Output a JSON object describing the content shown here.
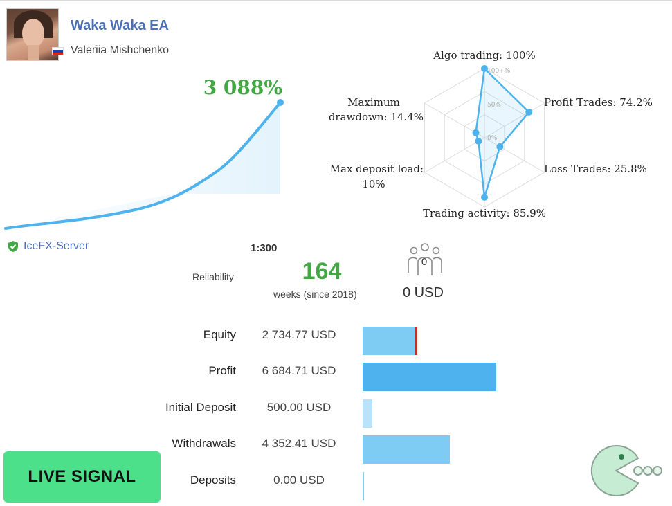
{
  "signal": {
    "title": "Waka Waka EA",
    "author": "Valeriia Mishchenko",
    "country_flag": "russia-flag-icon",
    "growth": "3 088%",
    "server": "IceFX-Server",
    "leverage": "1:300",
    "reliability_label": "Reliability",
    "weeks": "164",
    "weeks_label": "weeks (since 2018)",
    "subscribers": "0",
    "subscribers_usd": "0 USD",
    "live_label": "LIVE SIGNAL"
  },
  "radar": {
    "scale_100": "100+%",
    "scale_50": "50%",
    "scale_0": "0%",
    "algo": "Algo trading: 100%",
    "profit": "Profit Trades: 74.2%",
    "loss": "Loss Trades: 25.8%",
    "activity": "Trading activity: 85.9%",
    "deposit_load_1": "Max deposit load:",
    "deposit_load_2": "10%",
    "drawdown_1": "Maximum",
    "drawdown_2": "drawdown: 14.4%",
    "values": [
      100,
      74.2,
      25.8,
      85.9,
      10,
      14.4
    ]
  },
  "stats": [
    {
      "label": "Equity",
      "value": "2 734.77 USD",
      "amount": 2734.77
    },
    {
      "label": "Profit",
      "value": "6 684.71 USD",
      "amount": 6684.71
    },
    {
      "label": "Initial Deposit",
      "value": "500.00 USD",
      "amount": 500.0
    },
    {
      "label": "Withdrawals",
      "value": "4 352.41 USD",
      "amount": 4352.41
    },
    {
      "label": "Deposits",
      "value": "0.00 USD",
      "amount": 0.0
    }
  ],
  "colors": {
    "accent_blue": "#4a6fb5",
    "growth_green": "#43a843",
    "curve": "#4eb3ec",
    "bar_light": "#7ecbf3",
    "bar_dark": "#4db2ee",
    "bar_pale": "#b8e3fa",
    "live_green": "#4de08a"
  }
}
